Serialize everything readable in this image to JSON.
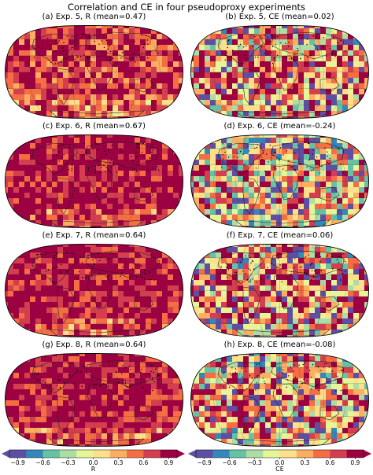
{
  "figure": {
    "title": "Correlation and CE in four pseudoproxy experiments"
  },
  "panels": [
    {
      "title": "(a) Exp. 5, R (mean=0.47)",
      "metric": "R",
      "mean": 0.47
    },
    {
      "title": "(b) Exp. 5, CE (mean=0.02)",
      "metric": "CE",
      "mean": 0.02
    },
    {
      "title": "(c) Exp. 6, R (mean=0.67)",
      "metric": "R",
      "mean": 0.67
    },
    {
      "title": "(d) Exp. 6, CE (mean=-0.24)",
      "metric": "CE",
      "mean": -0.24
    },
    {
      "title": "(e) Exp. 7, R (mean=0.64)",
      "metric": "R",
      "mean": 0.64
    },
    {
      "title": "(f) Exp. 7, CE (mean=0.06)",
      "metric": "CE",
      "mean": 0.06
    },
    {
      "title": "(g) Exp. 8, R (mean=0.64)",
      "metric": "R",
      "mean": 0.64
    },
    {
      "title": "(h) Exp. 8, CE (mean=-0.08)",
      "metric": "CE",
      "mean": -0.08
    }
  ],
  "colorbars": [
    {
      "label": "R",
      "ticks": [
        "−0.9",
        "−0.6",
        "−0.3",
        "0.0",
        "0.3",
        "0.6",
        "0.9"
      ],
      "range": [
        -1,
        1
      ],
      "extend": "both"
    },
    {
      "label": "CE",
      "ticks": [
        "−0.9",
        "−0.6",
        "−0.3",
        "0.0",
        "0.3",
        "0.6",
        "0.9"
      ],
      "range": [
        -1,
        1
      ],
      "extend": "both"
    }
  ],
  "chart_data": {
    "type": "heatmap",
    "projection": "Robinson",
    "colormap": "Spectral_r",
    "colors": [
      "#5e4fa2",
      "#3288bd",
      "#66c2a5",
      "#abdda4",
      "#e6f598",
      "#fee08b",
      "#fdae61",
      "#f46d43",
      "#d53e4f",
      "#9e0142"
    ],
    "panel_means": [
      0.47,
      0.02,
      0.67,
      -0.24,
      0.64,
      0.06,
      0.64,
      -0.08
    ],
    "colorbar_range": [
      -1,
      1
    ]
  }
}
